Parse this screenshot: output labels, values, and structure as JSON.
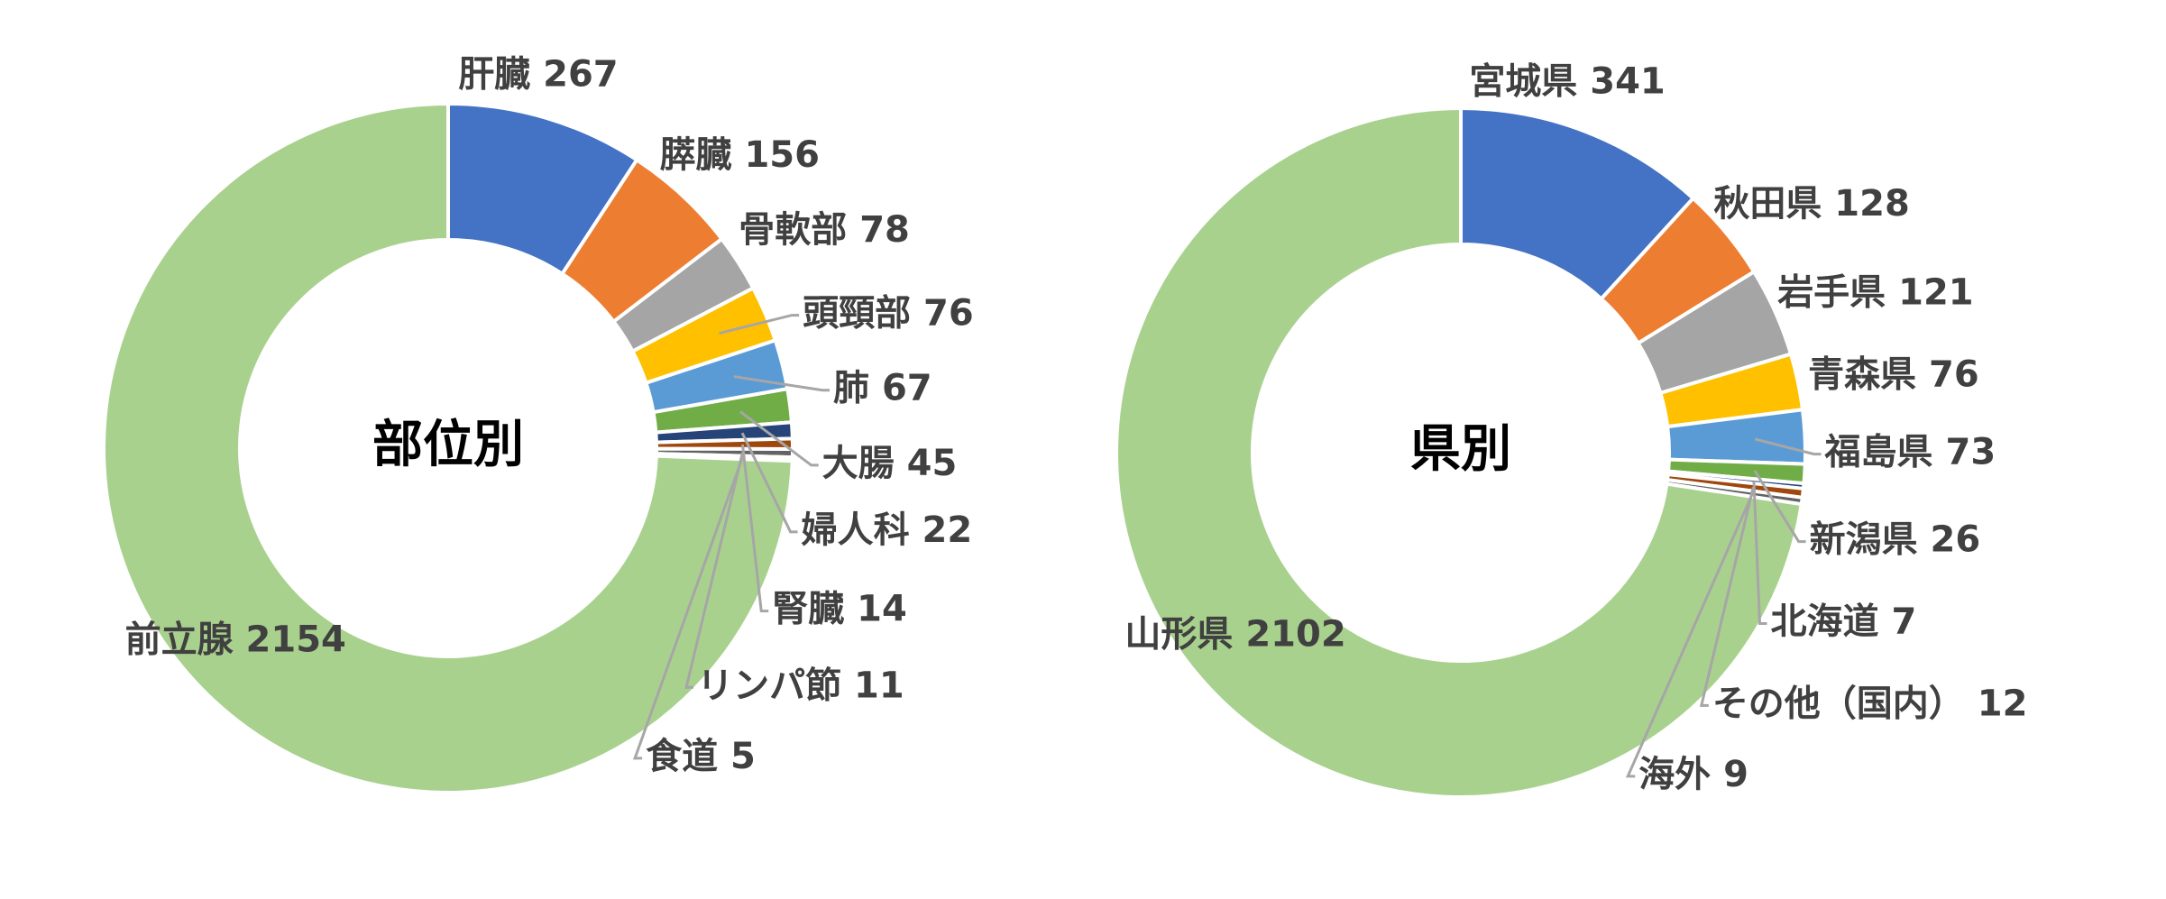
{
  "chart_data": [
    {
      "type": "donut",
      "title": "部位別",
      "categories": [
        "肝臓",
        "膵臓",
        "骨軟部",
        "頭頸部",
        "肺",
        "大腸",
        "婦人科",
        "腎臓",
        "リンパ節",
        "食道",
        "前立腺"
      ],
      "values": [
        267,
        156,
        78,
        76,
        67,
        45,
        22,
        14,
        11,
        5,
        2154
      ],
      "colors": [
        "#4472c4",
        "#ed7d31",
        "#a5a5a5",
        "#ffc000",
        "#5b9bd5",
        "#70ad47",
        "#264478",
        "#9e480e",
        "#636363",
        "#997300",
        "#a9d18e"
      ]
    },
    {
      "type": "donut",
      "title": "県別",
      "categories": [
        "宮城県",
        "秋田県",
        "岩手県",
        "青森県",
        "福島県",
        "新潟県",
        "北海道",
        "その他（国内）",
        "海外",
        "山形県"
      ],
      "values": [
        341,
        128,
        121,
        76,
        73,
        26,
        7,
        12,
        9,
        2102
      ],
      "colors": [
        "#4472c4",
        "#ed7d31",
        "#a5a5a5",
        "#ffc000",
        "#5b9bd5",
        "#70ad47",
        "#264478",
        "#9e480e",
        "#636363",
        "#a9d18e"
      ]
    }
  ]
}
